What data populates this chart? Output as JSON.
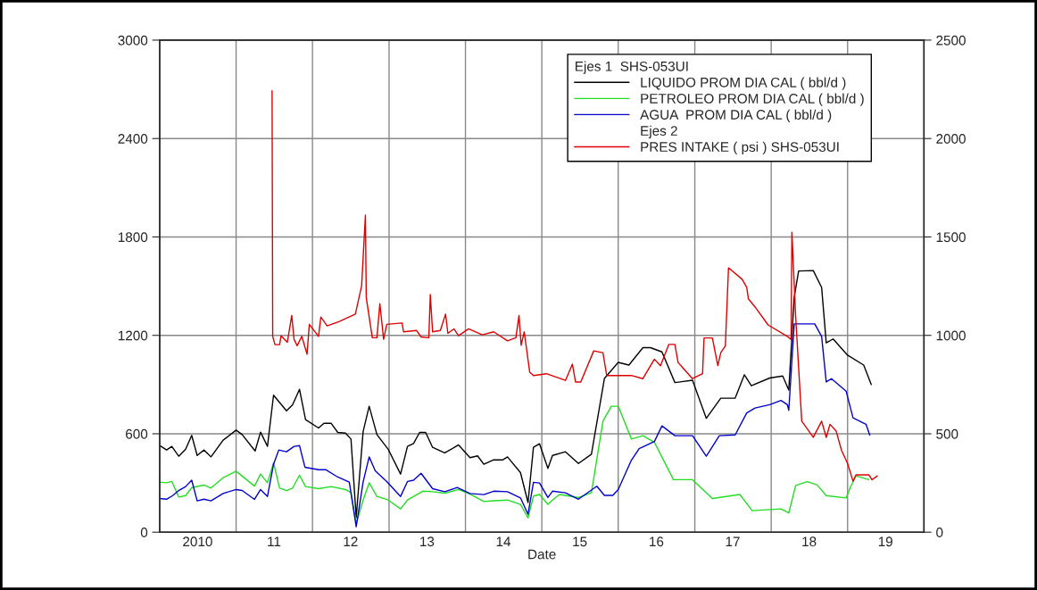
{
  "chart_data": {
    "type": "line",
    "xlabel": "Date",
    "legend_title": "Ejes 1  SHS-053UI",
    "annotations": [
      "Ejes 2"
    ],
    "xlim": [
      "2010-01-01",
      "2020-01-01"
    ],
    "xticks": [
      {
        "value": "2010-07-01",
        "label": "2010"
      },
      {
        "value": "2011-01-01",
        "label": null
      },
      {
        "value": "2011-07-01",
        "label": "11"
      },
      {
        "value": "2012-01-01",
        "label": null
      },
      {
        "value": "2012-07-01",
        "label": "12"
      },
      {
        "value": "2013-01-01",
        "label": null
      },
      {
        "value": "2013-07-01",
        "label": "13"
      },
      {
        "value": "2014-01-01",
        "label": null
      },
      {
        "value": "2014-07-01",
        "label": "14"
      },
      {
        "value": "2015-01-01",
        "label": null
      },
      {
        "value": "2015-07-01",
        "label": "15"
      },
      {
        "value": "2016-01-01",
        "label": null
      },
      {
        "value": "2016-07-01",
        "label": "16"
      },
      {
        "value": "2017-01-01",
        "label": null
      },
      {
        "value": "2017-07-01",
        "label": "17"
      },
      {
        "value": "2018-01-01",
        "label": null
      },
      {
        "value": "2018-07-01",
        "label": "18"
      },
      {
        "value": "2019-01-01",
        "label": null
      },
      {
        "value": "2019-07-01",
        "label": "19"
      }
    ],
    "ylim": [
      0,
      3000
    ],
    "yticks": [
      0,
      600,
      1200,
      1800,
      2400,
      3000
    ],
    "y2lim": [
      0,
      2500
    ],
    "y2ticks": [
      0,
      500,
      1000,
      1500,
      2000,
      2500
    ],
    "grid": true,
    "legend": "top right",
    "line_style": "solid",
    "marker": "none",
    "series": [
      {
        "name": "LIQUIDO PROM DIA CAL ( bbl/d )",
        "color": "#000000",
        "x": [
          "2010-01-01",
          "2010-02-03",
          "2010-02-28",
          "2010-04-02",
          "2010-05-05",
          "2010-06-03",
          "2010-06-29",
          "2010-08-01",
          "2010-09-03",
          "2010-10-31",
          "2011-01-01",
          "2011-01-30",
          "2011-04-02",
          "2011-04-28",
          "2011-05-31",
          "2011-06-29",
          "2011-08-30",
          "2011-09-28",
          "2011-10-31",
          "2011-11-29",
          "2012-01-30",
          "2012-02-25",
          "2012-03-30",
          "2012-05-01",
          "2012-06-07",
          "2012-07-03",
          "2012-07-28",
          "2012-08-30",
          "2012-09-28",
          "2012-11-04",
          "2012-12-28",
          "2013-02-25",
          "2013-03-30",
          "2013-04-28",
          "2013-05-27",
          "2013-06-25",
          "2013-07-28",
          "2013-09-24",
          "2013-11-29",
          "2014-01-23",
          "2014-02-28",
          "2014-03-30",
          "2014-05-16",
          "2014-06-29",
          "2014-07-21",
          "2014-09-21",
          "2014-10-27",
          "2014-11-22",
          "2014-12-21",
          "2015-01-30",
          "2015-02-21",
          "2015-04-24",
          "2015-06-25",
          "2015-08-26",
          "2015-10-27",
          "2016-01-01",
          "2016-02-21",
          "2016-04-28",
          "2016-06-03",
          "2016-07-28",
          "2016-09-28",
          "2016-12-21",
          "2017-02-25",
          "2017-05-05",
          "2017-07-13",
          "2017-08-26",
          "2017-09-28",
          "2017-12-25",
          "2018-02-25",
          "2018-03-26",
          "2018-04-21",
          "2018-05-12",
          "2018-07-21",
          "2018-08-30",
          "2018-09-21",
          "2018-10-24",
          "2019-01-01",
          "2019-03-19",
          "2019-04-24"
        ],
        "values": [
          528,
          501,
          523,
          463,
          506,
          590,
          468,
          501,
          459,
          561,
          622,
          595,
          495,
          610,
          523,
          835,
          740,
          777,
          871,
          686,
          635,
          664,
          664,
          608,
          604,
          568,
          90,
          613,
          768,
          595,
          505,
          354,
          523,
          541,
          608,
          608,
          517,
          483,
          532,
          454,
          465,
          414,
          441,
          441,
          459,
          363,
          181,
          518,
          539,
          389,
          468,
          490,
          419,
          475,
          937,
          1035,
          1019,
          1125,
          1125,
          1099,
          912,
          926,
          694,
          817,
          817,
          960,
          893,
          940,
          952,
          866,
          1433,
          1592,
          1595,
          1492,
          1154,
          1178,
          1079,
          1019,
          900
        ]
      },
      {
        "name": "PETROLEO PROM DIA CAL ( bbl/d )",
        "color": "#22dd22",
        "x": [
          "2010-01-01",
          "2010-02-03",
          "2010-02-28",
          "2010-04-02",
          "2010-05-05",
          "2010-06-03",
          "2010-08-01",
          "2010-09-03",
          "2010-10-31",
          "2011-01-01",
          "2011-03-30",
          "2011-04-28",
          "2011-05-31",
          "2011-06-29",
          "2011-07-28",
          "2011-08-30",
          "2011-09-28",
          "2011-10-31",
          "2011-11-29",
          "2012-01-30",
          "2012-03-30",
          "2012-06-07",
          "2012-07-03",
          "2012-07-28",
          "2012-08-30",
          "2012-09-28",
          "2012-11-04",
          "2012-12-28",
          "2013-02-25",
          "2013-03-30",
          "2013-06-11",
          "2013-07-28",
          "2013-09-24",
          "2013-11-29",
          "2014-01-23",
          "2014-03-30",
          "2014-05-16",
          "2014-07-21",
          "2014-09-21",
          "2014-10-27",
          "2014-11-22",
          "2014-12-21",
          "2015-01-30",
          "2015-02-21",
          "2015-03-26",
          "2015-06-25",
          "2015-08-26",
          "2015-10-20",
          "2015-11-29",
          "2016-01-01",
          "2016-03-04",
          "2016-04-28",
          "2016-06-22",
          "2016-09-21",
          "2016-12-21",
          "2017-03-26",
          "2017-08-04",
          "2017-10-02",
          "2018-02-17",
          "2018-03-26",
          "2018-04-28",
          "2018-06-22",
          "2018-08-08",
          "2018-09-21",
          "2018-12-25",
          "2019-01-16",
          "2019-02-10",
          "2019-04-13"
        ],
        "values": [
          305,
          301,
          309,
          214,
          223,
          272,
          287,
          269,
          332,
          372,
          281,
          354,
          301,
          423,
          269,
          254,
          269,
          347,
          278,
          265,
          278,
          260,
          241,
          51,
          196,
          301,
          218,
          196,
          142,
          196,
          250,
          247,
          238,
          260,
          232,
          187,
          192,
          196,
          169,
          87,
          220,
          230,
          170,
          196,
          230,
          211,
          240,
          677,
          768,
          768,
          568,
          588,
          548,
          320,
          320,
          205,
          230,
          131,
          142,
          117,
          285,
          308,
          289,
          223,
          209,
          279,
          343,
          320
        ]
      },
      {
        "name": "AGUA  PROM DIA CAL ( bbl/d )",
        "color": "#0000cc",
        "x": [
          "2010-01-01",
          "2010-02-03",
          "2010-03-04",
          "2010-04-02",
          "2010-05-05",
          "2010-06-03",
          "2010-06-29",
          "2010-08-01",
          "2010-09-03",
          "2010-10-31",
          "2011-01-01",
          "2011-01-30",
          "2011-03-30",
          "2011-04-28",
          "2011-05-31",
          "2011-06-29",
          "2011-07-24",
          "2011-08-30",
          "2011-10-05",
          "2011-10-31",
          "2011-11-26",
          "2012-01-30",
          "2012-03-04",
          "2012-05-01",
          "2012-06-25",
          "2012-07-28",
          "2012-08-30",
          "2012-09-28",
          "2012-10-27",
          "2012-12-21",
          "2013-02-25",
          "2013-03-30",
          "2013-04-28",
          "2013-06-03",
          "2013-07-28",
          "2013-09-24",
          "2013-11-22",
          "2014-01-23",
          "2014-03-30",
          "2014-05-16",
          "2014-07-21",
          "2014-09-21",
          "2014-10-27",
          "2014-11-22",
          "2014-12-21",
          "2015-01-30",
          "2015-02-21",
          "2015-04-24",
          "2015-06-25",
          "2015-09-21",
          "2015-10-27",
          "2015-12-06",
          "2016-01-01",
          "2016-03-04",
          "2016-04-10",
          "2016-06-22",
          "2016-07-28",
          "2016-09-28",
          "2016-12-21",
          "2017-02-25",
          "2017-04-28",
          "2017-07-13",
          "2017-09-06",
          "2017-10-16",
          "2017-12-25",
          "2018-02-17",
          "2018-03-19",
          "2018-03-26",
          "2018-04-21",
          "2018-07-28",
          "2018-08-30",
          "2018-09-21",
          "2018-10-16",
          "2018-12-25",
          "2019-01-27",
          "2019-03-30",
          "2019-04-17"
        ],
        "values": [
          205,
          201,
          223,
          254,
          278,
          317,
          191,
          201,
          191,
          236,
          260,
          254,
          200,
          260,
          218,
          414,
          501,
          490,
          523,
          528,
          396,
          381,
          381,
          336,
          305,
          33,
          305,
          459,
          374,
          309,
          218,
          309,
          317,
          359,
          265,
          247,
          272,
          236,
          229,
          250,
          247,
          209,
          109,
          304,
          300,
          211,
          250,
          240,
          201,
          280,
          224,
          224,
          260,
          439,
          509,
          553,
          648,
          588,
          588,
          463,
          588,
          593,
          727,
          757,
          777,
          803,
          777,
          743,
          1270,
          1270,
          1194,
          916,
          936,
          860,
          697,
          658,
          592
        ]
      },
      {
        "name": "PRES INTAKE ( psi ) SHS-053UI",
        "color": "#dd0000",
        "axis": "y2",
        "x": [
          "2011-06-22",
          "2011-06-25",
          "2011-07-06",
          "2011-07-28",
          "2011-08-04",
          "2011-09-03",
          "2011-09-24",
          "2011-10-05",
          "2011-10-20",
          "2011-11-11",
          "2011-12-06",
          "2011-12-17",
          "2012-01-30",
          "2012-02-10",
          "2012-03-11",
          "2012-05-09",
          "2012-07-24",
          "2012-08-23",
          "2012-09-10",
          "2012-09-14",
          "2012-10-13",
          "2012-11-04",
          "2012-11-18",
          "2012-12-06",
          "2012-12-21",
          "2013-03-04",
          "2013-03-11",
          "2013-05-12",
          "2013-06-03",
          "2013-07-10",
          "2013-07-17",
          "2013-07-28",
          "2013-09-03",
          "2013-09-28",
          "2013-10-09",
          "2013-11-07",
          "2013-11-29",
          "2014-01-16",
          "2014-03-22",
          "2014-05-16",
          "2014-07-21",
          "2014-08-30",
          "2014-09-14",
          "2014-09-24",
          "2014-10-09",
          "2014-11-04",
          "2014-11-22",
          "2015-01-23",
          "2015-04-24",
          "2015-05-27",
          "2015-06-11",
          "2015-07-06",
          "2015-09-06",
          "2015-10-20",
          "2015-11-07",
          "2015-12-21",
          "2016-03-04",
          "2016-04-28",
          "2016-06-22",
          "2016-07-21",
          "2016-08-30",
          "2016-09-28",
          "2016-10-13",
          "2016-12-21",
          "2017-02-07",
          "2017-02-14",
          "2017-03-26",
          "2017-04-21",
          "2017-05-05",
          "2017-05-27",
          "2017-06-11",
          "2017-08-15",
          "2017-09-06",
          "2017-09-14",
          "2017-10-16",
          "2017-12-17",
          "2018-03-19",
          "2018-04-06",
          "2018-04-10",
          "2018-04-28",
          "2018-05-27",
          "2018-07-21",
          "2018-08-30",
          "2018-09-21",
          "2018-10-09",
          "2018-11-07",
          "2018-12-03",
          "2019-01-01",
          "2019-01-27",
          "2019-02-10",
          "2019-04-13",
          "2019-04-28",
          "2019-05-23"
        ],
        "values": [
          2243,
          995,
          953,
          953,
          998,
          965,
          1101,
          980,
          947,
          995,
          904,
          1056,
          995,
          1093,
          1048,
          1071,
          1108,
          1252,
          1611,
          1192,
          988,
          988,
          1161,
          980,
          1056,
          1063,
          1018,
          1025,
          992,
          988,
          1207,
          1018,
          1025,
          1108,
          1010,
          1033,
          998,
          1033,
          1003,
          1018,
          972,
          988,
          1101,
          950,
          1018,
          813,
          796,
          805,
          771,
          854,
          763,
          763,
          921,
          912,
          796,
          796,
          796,
          780,
          879,
          846,
          954,
          954,
          862,
          780,
          805,
          987,
          987,
          846,
          912,
          946,
          1343,
          1285,
          1244,
          1186,
          1144,
          1053,
          995,
          979,
          1524,
          1094,
          564,
          482,
          564,
          482,
          548,
          515,
          416,
          349,
          259,
          291,
          291,
          266,
          286
        ]
      }
    ]
  }
}
